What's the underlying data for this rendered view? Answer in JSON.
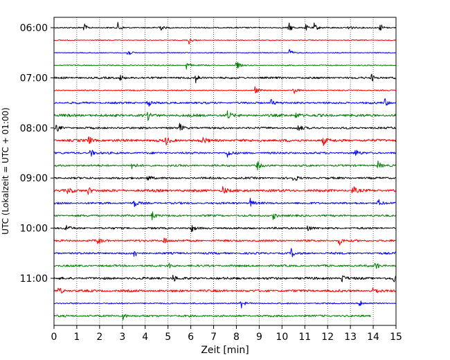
{
  "chart_data": {
    "type": "line",
    "title": "",
    "xlabel": "Zeit  [min]",
    "ylabel": "UTC (Lokalzeit = UTC + 01:00)",
    "xlim": [
      0,
      15
    ],
    "x_ticks": [
      "0",
      "1",
      "2",
      "3",
      "4",
      "5",
      "6",
      "7",
      "8",
      "9",
      "10",
      "11",
      "12",
      "13",
      "14",
      "15"
    ],
    "y_ticks": [
      "06:00",
      "07:00",
      "08:00",
      "09:00",
      "10:00",
      "11:00"
    ],
    "grid": "vertical dotted",
    "colors": [
      "#000000",
      "#ff0000",
      "#0000ff",
      "#008000"
    ],
    "traces": [
      {
        "start": "06:00",
        "end_min": 15,
        "color": "#000000",
        "noise": 1.0,
        "events": [
          1.3,
          2.8,
          4.6,
          10.3,
          11.0,
          11.4,
          12.9,
          14.3
        ]
      },
      {
        "start": "06:15",
        "end_min": 15,
        "color": "#ff0000",
        "noise": 0.7,
        "events": [
          5.9
        ]
      },
      {
        "start": "06:30",
        "end_min": 15,
        "color": "#0000ff",
        "noise": 0.7,
        "events": [
          3.2,
          10.3
        ]
      },
      {
        "start": "06:45",
        "end_min": 15,
        "color": "#008000",
        "noise": 0.8,
        "events": [
          5.8,
          8.0
        ]
      },
      {
        "start": "07:00",
        "end_min": 15,
        "color": "#000000",
        "noise": 1.5,
        "events": [
          2.9,
          6.2,
          13.9
        ]
      },
      {
        "start": "07:15",
        "end_min": 15,
        "color": "#ff0000",
        "noise": 0.8,
        "events": [
          8.8,
          10.5
        ]
      },
      {
        "start": "07:30",
        "end_min": 15,
        "color": "#0000ff",
        "noise": 1.5,
        "events": [
          4.1,
          9.5,
          14.5
        ]
      },
      {
        "start": "07:45",
        "end_min": 15,
        "color": "#008000",
        "noise": 2.0,
        "events": [
          4.1,
          7.6,
          10.6
        ]
      },
      {
        "start": "08:00",
        "end_min": 15,
        "color": "#000000",
        "noise": 1.5,
        "events": [
          0.1,
          5.5,
          10.7
        ]
      },
      {
        "start": "08:15",
        "end_min": 15,
        "color": "#ff0000",
        "noise": 2.0,
        "events": [
          1.5,
          4.9,
          6.5,
          11.8,
          15.0
        ]
      },
      {
        "start": "08:30",
        "end_min": 15,
        "color": "#0000ff",
        "noise": 1.5,
        "events": [
          1.6,
          7.6,
          13.2
        ]
      },
      {
        "start": "08:45",
        "end_min": 15,
        "color": "#008000",
        "noise": 1.5,
        "events": [
          3.4,
          8.9,
          14.2
        ]
      },
      {
        "start": "09:00",
        "end_min": 15,
        "color": "#000000",
        "noise": 1.5,
        "events": [
          4.1,
          10.5
        ]
      },
      {
        "start": "09:15",
        "end_min": 15,
        "color": "#ff0000",
        "noise": 2.0,
        "events": [
          0.6,
          1.5,
          7.4,
          13.1
        ]
      },
      {
        "start": "09:30",
        "end_min": 15,
        "color": "#0000ff",
        "noise": 1.5,
        "events": [
          3.5,
          8.6,
          14.2
        ]
      },
      {
        "start": "09:45",
        "end_min": 15,
        "color": "#008000",
        "noise": 1.5,
        "events": [
          4.3,
          9.6
        ]
      },
      {
        "start": "10:00",
        "end_min": 15,
        "color": "#000000",
        "noise": 1.5,
        "events": [
          0.5,
          6.0,
          11.1
        ]
      },
      {
        "start": "10:15",
        "end_min": 15,
        "color": "#ff0000",
        "noise": 1.5,
        "events": [
          1.9,
          4.8,
          12.5
        ]
      },
      {
        "start": "10:30",
        "end_min": 15,
        "color": "#0000ff",
        "noise": 1.5,
        "events": [
          3.5,
          10.4,
          15.0
        ]
      },
      {
        "start": "10:45",
        "end_min": 15,
        "color": "#008000",
        "noise": 1.5,
        "events": [
          5.0,
          14.1
        ]
      },
      {
        "start": "11:00",
        "end_min": 15,
        "color": "#000000",
        "noise": 1.8,
        "events": [
          5.2,
          12.6,
          14.9
        ]
      },
      {
        "start": "11:15",
        "end_min": 15,
        "color": "#ff0000",
        "noise": 1.8,
        "events": [
          0.2,
          14.0
        ]
      },
      {
        "start": "11:30",
        "end_min": 15,
        "color": "#0000ff",
        "noise": 1.0,
        "events": [
          8.2,
          13.4
        ]
      },
      {
        "start": "11:45",
        "end_min": 13.9,
        "color": "#008000",
        "noise": 1.5,
        "events": [
          3.0
        ]
      }
    ]
  }
}
